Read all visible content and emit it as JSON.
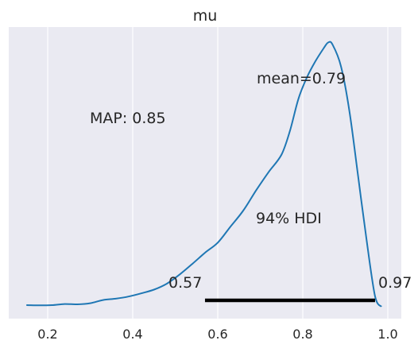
{
  "chart_data": {
    "type": "line",
    "title": "mu",
    "xlabel": "",
    "ylabel": "",
    "xlim": [
      0.12,
      1.03
    ],
    "ylim": [
      0,
      1.0
    ],
    "grid": true,
    "x_ticks": [
      0.2,
      0.4,
      0.6,
      0.8,
      1.0
    ],
    "x_tick_labels": [
      "0.2",
      "0.4",
      "0.6",
      "0.8",
      "1.0"
    ],
    "series": [
      {
        "x": [
          0.15,
          0.18,
          0.21,
          0.24,
          0.27,
          0.3,
          0.33,
          0.36,
          0.39,
          0.42,
          0.45,
          0.48,
          0.51,
          0.54,
          0.57,
          0.6,
          0.63,
          0.66,
          0.69,
          0.72,
          0.75,
          0.77,
          0.79,
          0.81,
          0.83,
          0.85,
          0.86,
          0.87,
          0.89,
          0.91,
          0.93,
          0.95,
          0.97,
          0.985
        ],
        "y": [
          0.006,
          0.005,
          0.006,
          0.01,
          0.009,
          0.013,
          0.025,
          0.03,
          0.038,
          0.05,
          0.064,
          0.086,
          0.12,
          0.16,
          0.202,
          0.24,
          0.3,
          0.36,
          0.435,
          0.505,
          0.57,
          0.66,
          0.78,
          0.86,
          0.92,
          0.97,
          0.99,
          0.982,
          0.9,
          0.73,
          0.49,
          0.25,
          0.04,
          0.0
        ]
      }
    ],
    "annotations": {
      "map": "MAP: 0.85",
      "mean": "mean=0.79",
      "hdi": "94% HDI",
      "hdi_low": "0.57",
      "hdi_high": "0.97"
    },
    "hdi_interval": [
      0.57,
      0.97
    ],
    "colors": {
      "line": "#1f77b4",
      "background": "#eaeaf2",
      "grid": "#ffffff",
      "hdi_bar": "#000000"
    }
  }
}
